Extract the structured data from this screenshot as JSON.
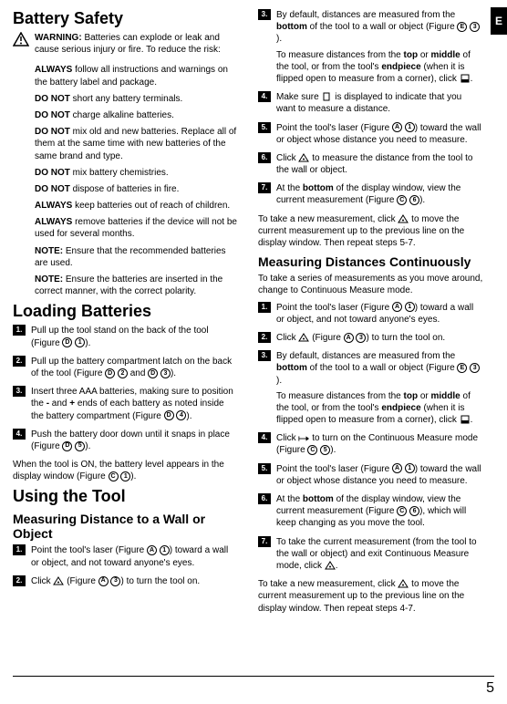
{
  "edgeTab": "E",
  "footerPage": "5",
  "left": {
    "h_battery_safety": "Battery Safety",
    "warning_lead": "WARNING:",
    "warning_text": " Batteries can explode or leak and cause serious injury or fire. To reduce the risk:",
    "bullets": [
      {
        "b": "ALWAYS",
        "t": " follow all instructions and warnings on the battery label and package."
      },
      {
        "b": "DO NOT",
        "t": " short any battery terminals."
      },
      {
        "b": "DO NOT",
        "t": " charge alkaline batteries."
      },
      {
        "b": "DO NOT",
        "t": " mix old and new batteries. Replace all of them at the same time with new batteries of the same brand and type."
      },
      {
        "b": "DO NOT",
        "t": " mix battery chemistries."
      },
      {
        "b": "DO NOT",
        "t": " dispose of batteries in fire."
      },
      {
        "b": "ALWAYS",
        "t": " keep batteries out of reach of children."
      },
      {
        "b": "ALWAYS",
        "t": " remove batteries if the device will not be used for several months."
      },
      {
        "b": "NOTE:",
        "t": " Ensure that the recommended batteries are used."
      },
      {
        "b": "NOTE:",
        "t": " Ensure the batteries are inserted in the correct manner, with the correct polarity."
      }
    ],
    "h_loading": "Loading Batteries",
    "load_steps": [
      "Pull up the tool stand on the back of the tool (Figure Ⓓ ①).",
      "Pull up the battery compartment latch on the back of the tool (Figure Ⓓ ② and Ⓓ ③).",
      "Insert three AAA batteries, making sure to position the - and + ends of each battery as noted inside the battery compartment (Figure Ⓓ ④).",
      "Push the battery door down until it snaps in place (Figure Ⓓ ⑤)."
    ],
    "load_after": "When the tool is ON, the battery level appears in the display window (Figure Ⓒ ①).",
    "h_using": "Using the Tool",
    "h_measure_wall": "Measuring Distance to a Wall or Object",
    "measure_steps": [
      "Point the tool's laser (Figure Ⓐ ①) toward a wall or object, and not toward anyone's eyes.",
      "Click ⓐ (Figure Ⓐ ③) to turn the tool on."
    ]
  },
  "right": {
    "cont_steps": [
      {
        "main": "By default, distances are measured from the bottom of the tool to a wall or object (Figure Ⓔ ③).",
        "sub": "To measure distances from the top or middle of the tool, or from the tool's endpiece (when it is flipped open to measure from a corner), click ▯."
      },
      {
        "main": "Make sure ▢ is displayed to indicate that you want to measure a distance."
      },
      {
        "main": "Point the tool's laser (Figure Ⓐ ①) toward the wall or object whose distance you need to measure."
      },
      {
        "main": "Click ⓐ to measure the distance from the tool to the wall or object."
      },
      {
        "main": "At the bottom of the display window, view the current measurement (Figure Ⓒ ⑥)."
      }
    ],
    "cont_after": "To take a new measurement, click ⓐ to move the current measurement up to the previous line on the display window. Then repeat steps 5-7.",
    "h_cont": "Measuring Distances Continuously",
    "cont_intro": "To take a series of measurements as you move around, change to Continuous Measure mode.",
    "cont2_steps": [
      {
        "main": "Point the tool's laser (Figure Ⓐ ①) toward a wall or object, and not toward anyone's eyes."
      },
      {
        "main": "Click ⓐ (Figure Ⓐ ③) to turn the tool on."
      },
      {
        "main": "By default, distances are measured from the bottom of the tool to a wall or object (Figure Ⓔ ③).",
        "sub": "To measure distances from the top or middle of the tool, or from the tool's endpiece (when it is flipped open to measure from a corner), click ▯."
      },
      {
        "main": "Click ⟼ to turn on the Continuous Measure mode (Figure Ⓒ ⑤)."
      },
      {
        "main": "Point the tool's laser (Figure Ⓐ ①) toward the wall or object whose distance you need to measure."
      },
      {
        "main": "At the bottom of the display window, view the current measurement (Figure Ⓒ ⑥), which will keep changing as you move the tool."
      },
      {
        "main": "To take the current measurement (from the tool to the wall or object) and exit Continuous Measure mode, click ⓐ."
      }
    ],
    "cont2_after": "To take a new measurement, click ⓐ to move the current measurement up to the previous line on the display window. Then repeat steps 4-7."
  }
}
